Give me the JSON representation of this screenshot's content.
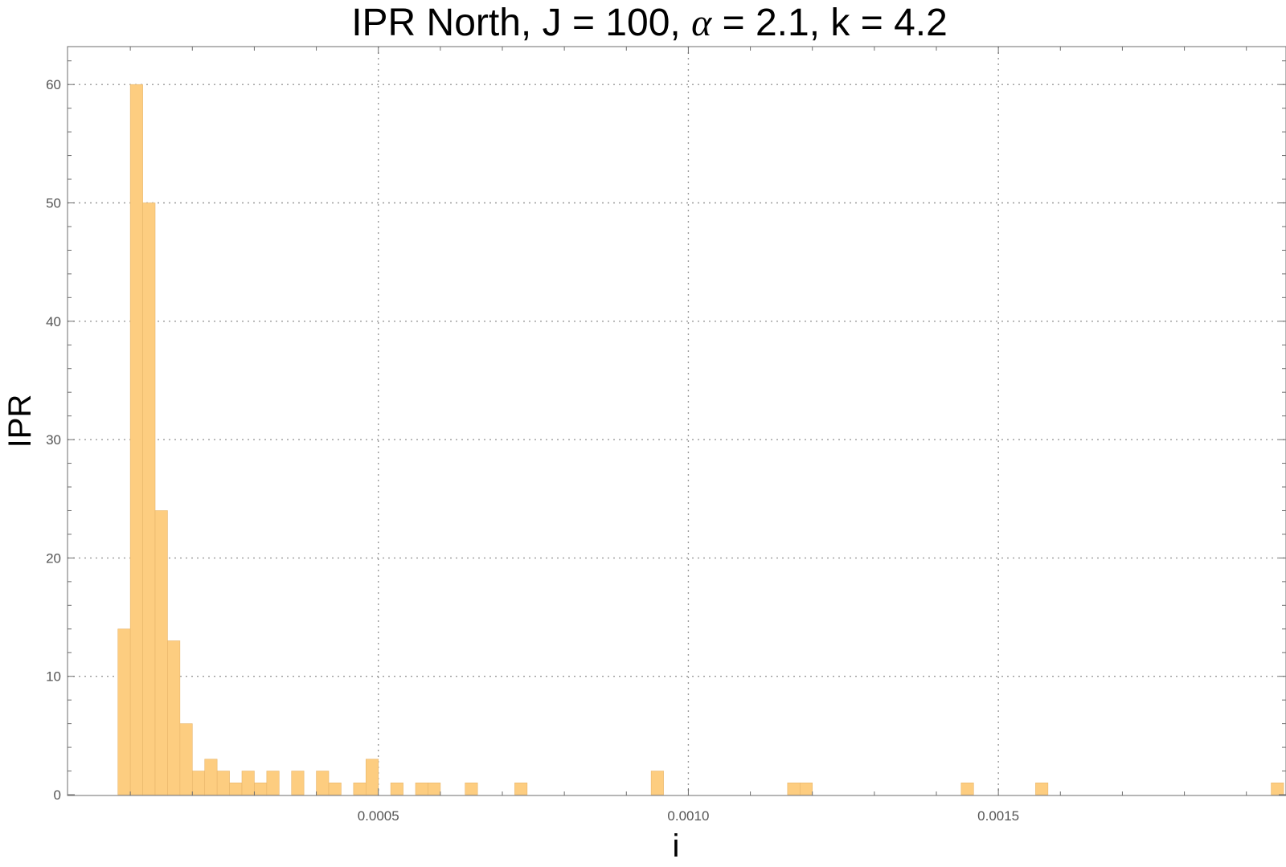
{
  "chart_data": {
    "type": "bar",
    "subtype": "histogram",
    "title": "IPR North, J = 100, α = 2.1, k = 4.2",
    "title_parts": [
      "IPR North, J = 100, ",
      "α",
      " = 2.1, k = 4.2"
    ],
    "xlabel": "i",
    "ylabel": "IPR",
    "bin_width": 2e-05,
    "xlim": [
      0.0,
      0.00196
    ],
    "ylim": [
      0,
      63
    ],
    "x_ticks": [
      {
        "value": 0.0005,
        "label": "0.0005"
      },
      {
        "value": 0.001,
        "label": "0.0010"
      },
      {
        "value": 0.0015,
        "label": "0.0015"
      }
    ],
    "y_ticks": [
      {
        "value": 0,
        "label": "0"
      },
      {
        "value": 10,
        "label": "10"
      },
      {
        "value": 20,
        "label": "20"
      },
      {
        "value": 30,
        "label": "30"
      },
      {
        "value": 40,
        "label": "40"
      },
      {
        "value": 50,
        "label": "50"
      },
      {
        "value": 60,
        "label": "60"
      }
    ],
    "y_minor_step": 2,
    "x_minor_step": 0.0001,
    "grid": true,
    "bar_color": "#fdcd80",
    "bars": [
      {
        "x": 8e-05,
        "count": 14
      },
      {
        "x": 0.0001,
        "count": 60
      },
      {
        "x": 0.00012,
        "count": 50
      },
      {
        "x": 0.00014,
        "count": 24
      },
      {
        "x": 0.00016,
        "count": 13
      },
      {
        "x": 0.00018,
        "count": 6
      },
      {
        "x": 0.0002,
        "count": 2
      },
      {
        "x": 0.00022,
        "count": 3
      },
      {
        "x": 0.00024,
        "count": 2
      },
      {
        "x": 0.00026,
        "count": 1
      },
      {
        "x": 0.00028,
        "count": 2
      },
      {
        "x": 0.0003,
        "count": 1
      },
      {
        "x": 0.00032,
        "count": 2
      },
      {
        "x": 0.00036,
        "count": 2
      },
      {
        "x": 0.0004,
        "count": 2
      },
      {
        "x": 0.00042,
        "count": 1
      },
      {
        "x": 0.00046,
        "count": 1
      },
      {
        "x": 0.00048,
        "count": 3
      },
      {
        "x": 0.00052,
        "count": 1
      },
      {
        "x": 0.00056,
        "count": 1
      },
      {
        "x": 0.00058,
        "count": 1
      },
      {
        "x": 0.00064,
        "count": 1
      },
      {
        "x": 0.00072,
        "count": 1
      },
      {
        "x": 0.00094,
        "count": 2
      },
      {
        "x": 0.00116,
        "count": 1
      },
      {
        "x": 0.00118,
        "count": 1
      },
      {
        "x": 0.00144,
        "count": 1
      },
      {
        "x": 0.00156,
        "count": 1
      },
      {
        "x": 0.00194,
        "count": 1
      }
    ]
  }
}
